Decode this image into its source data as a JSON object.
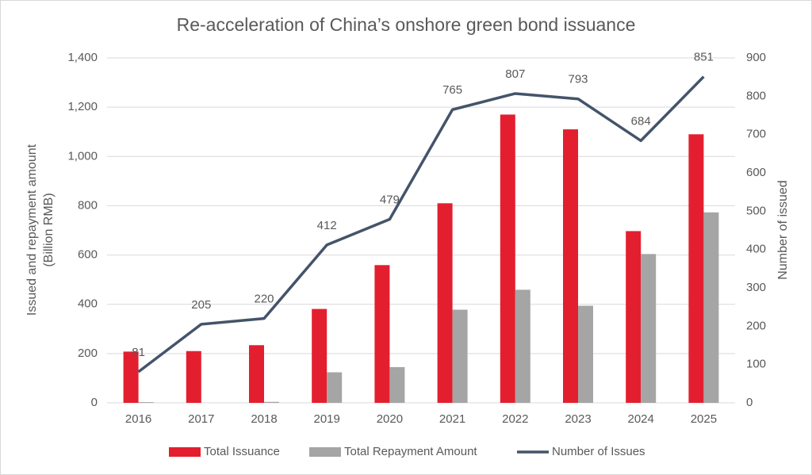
{
  "chart_data": {
    "type": "combo",
    "title": "Re-acceleration of China’s onshore green bond issuance",
    "ylabel": [
      "Issued and repayment amount",
      "(Billion RMB)"
    ],
    "y2label": "Number of issued",
    "categories": [
      "2016",
      "2017",
      "2018",
      "2019",
      "2020",
      "2021",
      "2022",
      "2023",
      "2024",
      "2025"
    ],
    "series": [
      {
        "name": "Total Issuance",
        "type": "bar",
        "color": "#e31f2f",
        "values": [
          208,
          210,
          234,
          381,
          559,
          810,
          1170,
          1110,
          697,
          1090
        ]
      },
      {
        "name": "Total Repayment Amount",
        "type": "bar",
        "color": "#a5a5a5",
        "values": [
          3,
          0,
          4,
          124,
          145,
          378,
          459,
          394,
          604,
          773
        ]
      },
      {
        "name": "Number of Issues",
        "type": "line",
        "axis": "y2",
        "color": "#44546a",
        "values": [
          81,
          205,
          220,
          412,
          479,
          765,
          807,
          793,
          684,
          851
        ],
        "data_labels": true
      }
    ],
    "ylim": [
      0,
      1400
    ],
    "yticks": [
      0,
      200,
      400,
      600,
      800,
      {
        "value": 1000,
        "label": "1,000"
      },
      {
        "value": 1200,
        "label": "1,200"
      },
      {
        "value": 1400,
        "label": "1,400"
      }
    ],
    "y2lim": [
      0,
      900
    ],
    "y2ticks": [
      0,
      100,
      200,
      300,
      400,
      500,
      600,
      700,
      800,
      900
    ],
    "grid": true,
    "legend": "bottom"
  }
}
